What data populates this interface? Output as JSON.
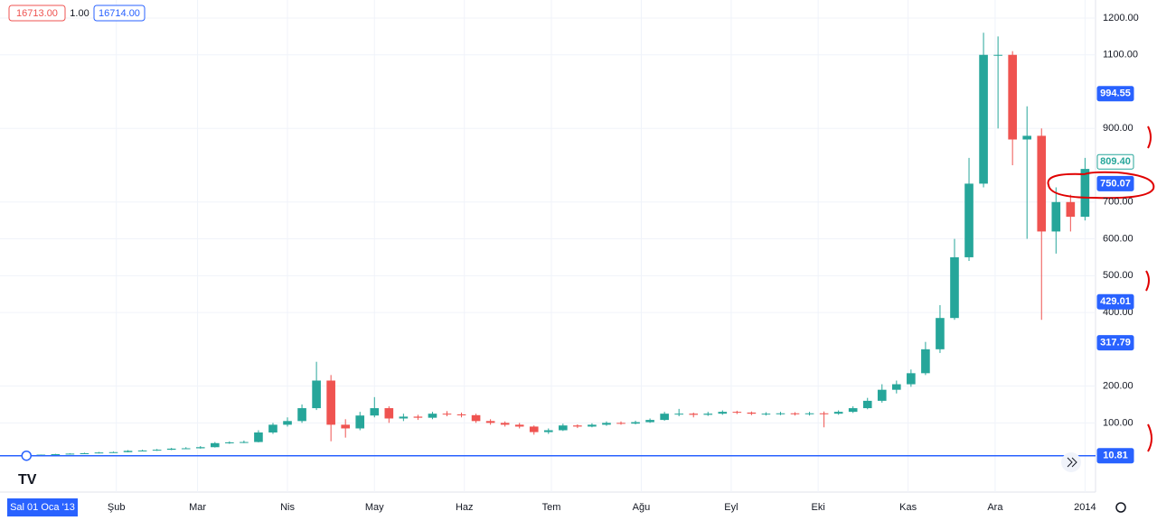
{
  "chart_data": {
    "type": "candlestick",
    "toolbar": {
      "sell": "16713.00",
      "qty": "1.00",
      "buy": "16714.00"
    },
    "crosshair_label": "Sal 01 Oca '13",
    "x": [
      0,
      5,
      10,
      15,
      20,
      25,
      30,
      35,
      40,
      45,
      50,
      55,
      60,
      65,
      70,
      75,
      80,
      85,
      90,
      95,
      100,
      105,
      110,
      115,
      120,
      125,
      130,
      135,
      140,
      145,
      150,
      155,
      160,
      165,
      170,
      175,
      180,
      185,
      190,
      195,
      200,
      205,
      210,
      215,
      220,
      225,
      230,
      235,
      240,
      245,
      250,
      255,
      260,
      265,
      270,
      275,
      280,
      285,
      290,
      295,
      300,
      305,
      310,
      315,
      320,
      325,
      330,
      335,
      340,
      345,
      350,
      355,
      360,
      365
    ],
    "open": [
      13.3,
      13.5,
      13.7,
      15,
      16.5,
      17.5,
      19.5,
      20.5,
      24,
      25,
      27,
      30,
      31,
      34,
      45,
      47,
      48,
      74,
      95,
      105,
      140,
      215,
      95,
      85,
      120,
      140,
      112,
      117,
      114,
      125,
      123,
      121,
      105,
      100,
      95,
      90,
      75,
      80,
      93,
      90,
      95,
      100,
      98,
      102,
      108,
      125,
      125,
      122,
      125,
      130,
      128,
      125,
      125,
      126,
      125,
      126,
      125,
      130,
      140,
      160,
      190,
      205,
      235,
      300,
      385,
      550,
      750,
      1100,
      1100,
      870,
      880,
      620,
      700,
      660
    ],
    "high": [
      14,
      14,
      16,
      17.5,
      19,
      21,
      22,
      26,
      27,
      29,
      32,
      34,
      37,
      48,
      50,
      52,
      80,
      100,
      115,
      150,
      266,
      230,
      110,
      130,
      170,
      145,
      125,
      122,
      130,
      132,
      128,
      125,
      110,
      104,
      100,
      93,
      85,
      98,
      96,
      99,
      104,
      104,
      106,
      112,
      130,
      138,
      128,
      130,
      134,
      133,
      131,
      129,
      130,
      129,
      130,
      131,
      134,
      145,
      168,
      205,
      215,
      245,
      320,
      420,
      600,
      820,
      1160,
      1150,
      1110,
      960,
      900,
      740,
      720,
      820
    ],
    "low": [
      13,
      13,
      13.5,
      14.5,
      16,
      17,
      19,
      20,
      23,
      24,
      26,
      29,
      30,
      33,
      43,
      45,
      47,
      70,
      90,
      100,
      135,
      50,
      60,
      80,
      115,
      100,
      105,
      108,
      110,
      118,
      115,
      100,
      95,
      90,
      85,
      68,
      70,
      78,
      86,
      88,
      92,
      95,
      96,
      100,
      106,
      118,
      115,
      119,
      122,
      124,
      121,
      120,
      121,
      120,
      120,
      88,
      122,
      127,
      137,
      155,
      180,
      198,
      230,
      290,
      380,
      540,
      740,
      900,
      800,
      600,
      380,
      560,
      620,
      650
    ],
    "close": [
      13.5,
      13.7,
      15,
      16.5,
      17.5,
      19.5,
      20.5,
      24,
      25,
      27,
      30,
      31,
      34,
      45,
      47,
      48,
      74,
      95,
      105,
      140,
      215,
      95,
      85,
      120,
      140,
      112,
      117,
      114,
      125,
      123,
      121,
      105,
      100,
      95,
      90,
      75,
      80,
      93,
      90,
      95,
      100,
      98,
      102,
      108,
      125,
      125,
      122,
      125,
      130,
      128,
      125,
      125,
      126,
      125,
      126,
      125,
      130,
      140,
      160,
      190,
      205,
      235,
      300,
      385,
      550,
      750,
      1100,
      1100,
      870,
      880,
      620,
      700,
      660,
      790
    ],
    "up_color": "#26a69a",
    "down_color": "#ef5350",
    "xlim": [
      -6,
      368
    ],
    "xticks": [
      {
        "value": 31,
        "label": "Şub"
      },
      {
        "value": 59,
        "label": "Mar"
      },
      {
        "value": 90,
        "label": "Nis"
      },
      {
        "value": 120,
        "label": "May"
      },
      {
        "value": 151,
        "label": "Haz"
      },
      {
        "value": 181,
        "label": "Tem"
      },
      {
        "value": 212,
        "label": "Ağu"
      },
      {
        "value": 243,
        "label": "Eyl"
      },
      {
        "value": 273,
        "label": "Eki"
      },
      {
        "value": 304,
        "label": "Kas"
      },
      {
        "value": 334,
        "label": "Ara"
      },
      {
        "value": 365,
        "label": "2014"
      }
    ],
    "ylim": [
      -88,
      1249
    ],
    "yticks": [
      {
        "value": 1200,
        "label": "1200.00"
      },
      {
        "value": 1100,
        "label": "1100.00"
      },
      {
        "value": 900,
        "label": "900.00"
      },
      {
        "value": 700,
        "label": "700.00"
      },
      {
        "value": 600,
        "label": "600.00"
      },
      {
        "value": 500,
        "label": "500.00"
      },
      {
        "value": 400,
        "label": "400.00"
      },
      {
        "value": 200,
        "label": "200.00"
      },
      {
        "value": 100,
        "label": "100.00"
      }
    ],
    "grid": true,
    "price_labels": [
      {
        "value": 994.55,
        "color": "#2962ff"
      },
      {
        "value": 809.4,
        "label": "809.40",
        "color": "#26a69a",
        "outline": true
      },
      {
        "value": 750.07,
        "color": "#2962ff"
      },
      {
        "value": 429.01,
        "color": "#2962ff"
      },
      {
        "value": 317.79,
        "color": "#2962ff"
      },
      {
        "value": 10.81,
        "color": "#2962ff"
      }
    ],
    "price_line": {
      "value": 10.81,
      "color": "#2962ff"
    }
  }
}
